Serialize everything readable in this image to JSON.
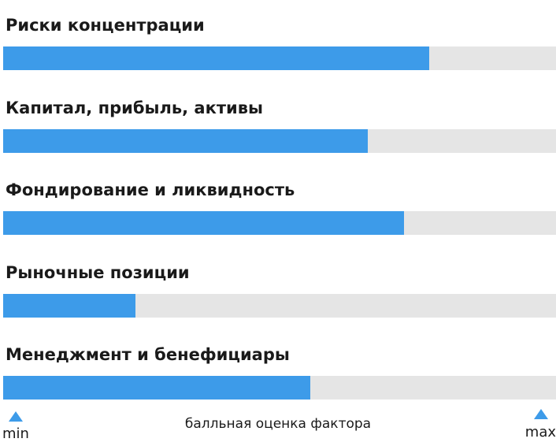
{
  "chart_data": {
    "type": "bar",
    "orientation": "horizontal",
    "categories": [
      "Риски концентрации",
      "Капитал, прибыль, активы",
      "Фондирование и ликвидность",
      "Рыночные позиции",
      "Менеджмент и бенефициары"
    ],
    "values": [
      0.77,
      0.66,
      0.725,
      0.24,
      0.555
    ],
    "xlim": [
      0,
      1
    ],
    "bar_color": "#3d9be9",
    "track_color": "#e5e5e5",
    "scale": {
      "min_label": "min",
      "max_label": "max",
      "caption": "балльная оценка фактора",
      "marker_color": "#3d9be9"
    }
  }
}
